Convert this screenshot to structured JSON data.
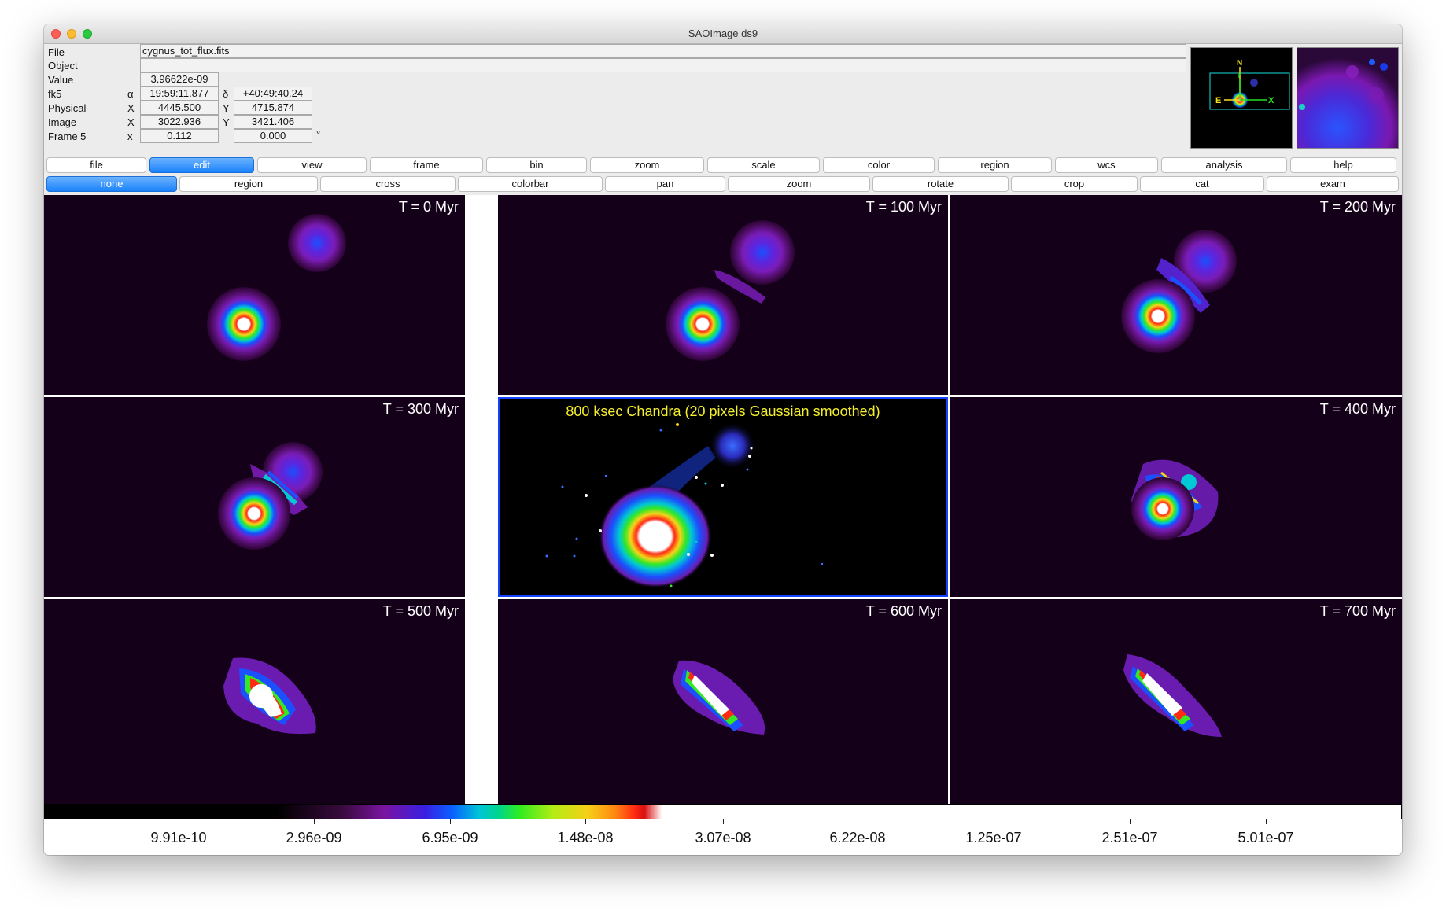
{
  "window": {
    "title": "SAOImage ds9"
  },
  "info": {
    "file_label": "File",
    "file_value": "cygnus_tot_flux.fits",
    "object_label": "Object",
    "object_value": "",
    "value_label": "Value",
    "value_value": "3.96622e-09",
    "fk5_label": "fk5",
    "fk5_alpha_sym": "α",
    "fk5_alpha": "19:59:11.877",
    "fk5_delta_sym": "δ",
    "fk5_delta": "+40:49:40.24",
    "physical_label": "Physical",
    "physical_x_sym": "X",
    "physical_x": "4445.500",
    "physical_y_sym": "Y",
    "physical_y": "4715.874",
    "image_label": "Image",
    "image_x_sym": "X",
    "image_x": "3022.936",
    "image_y_sym": "Y",
    "image_y": "3421.406",
    "frame_label": "Frame 5",
    "frame_x_sym": "x",
    "frame_zoom": "0.112",
    "frame_angle": "0.000",
    "frame_angle_unit": "°"
  },
  "panner": {
    "label_e": "E",
    "label_x": "X",
    "label_n": "N",
    "label_y": "Y"
  },
  "menu": [
    "file",
    "edit",
    "view",
    "frame",
    "bin",
    "zoom",
    "scale",
    "color",
    "region",
    "wcs",
    "analysis",
    "help"
  ],
  "menu_active": "edit",
  "modes": [
    "none",
    "region",
    "cross",
    "colorbar",
    "pan",
    "zoom",
    "rotate",
    "crop",
    "cat",
    "exam"
  ],
  "mode_active": "none",
  "frames": [
    {
      "title": "T = 0 Myr"
    },
    {
      "title": "T = 100 Myr"
    },
    {
      "title": "T = 200 Myr"
    },
    {
      "title": "T = 300 Myr"
    },
    {
      "title": "800 ksec Chandra (20 pixels Gaussian smoothed)"
    },
    {
      "title": "T = 400 Myr"
    },
    {
      "title": "T = 500 Myr"
    },
    {
      "title": "T = 600 Myr"
    },
    {
      "title": "T = 700 Myr"
    }
  ],
  "colorbar": {
    "ticks": [
      "9.91e-10",
      "2.96e-09",
      "6.95e-09",
      "1.48e-08",
      "3.07e-08",
      "6.22e-08",
      "1.25e-07",
      "2.51e-07",
      "5.01e-07"
    ]
  }
}
